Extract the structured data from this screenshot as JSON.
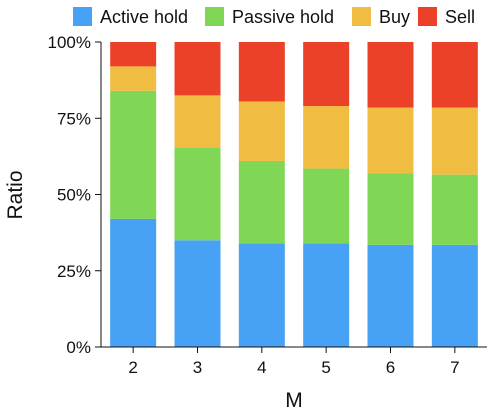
{
  "chart_data": {
    "type": "bar",
    "stacked": true,
    "title": "",
    "xlabel": "M",
    "ylabel": "Ratio",
    "categories": [
      "2",
      "3",
      "4",
      "5",
      "6",
      "7"
    ],
    "ylim": [
      0,
      100
    ],
    "yticks": [
      "0%",
      "25%",
      "50%",
      "75%",
      "100%"
    ],
    "grid": false,
    "legend_position": "top",
    "series": [
      {
        "name": "Active hold",
        "color": "#47a1f5",
        "values": [
          42,
          35,
          34,
          34,
          33.5,
          33.5
        ]
      },
      {
        "name": "Passive hold",
        "color": "#80d655",
        "values": [
          42,
          30.5,
          27,
          24.5,
          23.5,
          23
        ]
      },
      {
        "name": "Buy",
        "color": "#f0bc42",
        "values": [
          8,
          17,
          19.5,
          20.5,
          21.5,
          22
        ]
      },
      {
        "name": "Sell",
        "color": "#eb4128",
        "values": [
          8,
          17.5,
          19.5,
          21,
          21.5,
          21.5
        ]
      }
    ]
  }
}
